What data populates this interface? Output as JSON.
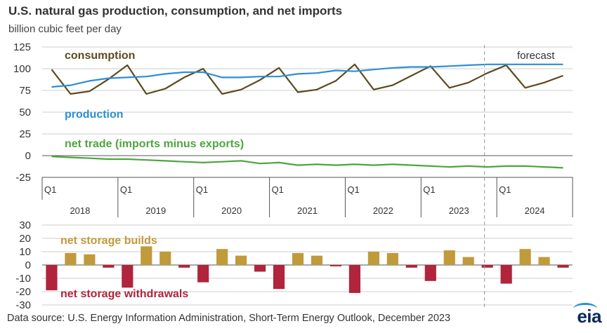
{
  "header": {
    "title": "U.S. natural gas production, consumption, and net imports",
    "subtitle": "billion cubic feet per day"
  },
  "footer": {
    "source": "Data source: U.S. Energy Information Administration, Short-Term Energy Outlook, December 2023",
    "logo": "eia"
  },
  "colors": {
    "consumption": "#5c4a1f",
    "production": "#2b8fd3",
    "net_trade": "#4ea53f",
    "builds": "#c09a3b",
    "withdrawals": "#b0243c",
    "grid": "#cccccc",
    "forecast_line": "#999999"
  },
  "chart_data": [
    {
      "type": "line",
      "title": "U.S. natural gas production, consumption, and net imports",
      "ylabel": "billion cubic feet per day",
      "ylim": [
        -25,
        125
      ],
      "yticks": [
        125,
        100,
        75,
        50,
        25,
        0,
        -25
      ],
      "grid": true,
      "categories": [
        "2018Q1",
        "2018Q2",
        "2018Q3",
        "2018Q4",
        "2019Q1",
        "2019Q2",
        "2019Q3",
        "2019Q4",
        "2020Q1",
        "2020Q2",
        "2020Q3",
        "2020Q4",
        "2021Q1",
        "2021Q2",
        "2021Q3",
        "2021Q4",
        "2022Q1",
        "2022Q2",
        "2022Q3",
        "2022Q4",
        "2023Q1",
        "2023Q2",
        "2023Q3",
        "2023Q4",
        "2024Q1",
        "2024Q2",
        "2024Q3",
        "2024Q4"
      ],
      "quarter_label": "Q1",
      "years": [
        "2018",
        "2019",
        "2020",
        "2021",
        "2022",
        "2023",
        "2024"
      ],
      "forecast_label": "forecast",
      "forecast_start": "2023Q4",
      "series": [
        {
          "name": "consumption",
          "values": [
            99,
            71,
            74,
            88,
            104,
            71,
            77,
            90,
            100,
            71,
            76,
            87,
            101,
            73,
            76,
            86,
            105,
            76,
            81,
            92,
            103,
            78,
            84,
            95,
            104,
            78,
            84,
            92
          ]
        },
        {
          "name": "production",
          "values": [
            79,
            81,
            86,
            89,
            90,
            91,
            94,
            96,
            96,
            90,
            90,
            91,
            91,
            94,
            95,
            98,
            97,
            99,
            101,
            102,
            102,
            103,
            104,
            105,
            105,
            105,
            105,
            105
          ]
        },
        {
          "name": "net trade (imports minus exports)",
          "values": [
            -1,
            -2,
            -3,
            -4,
            -4,
            -5,
            -6,
            -7,
            -8,
            -7,
            -6,
            -9,
            -8,
            -11,
            -10,
            -11,
            -10,
            -11,
            -10,
            -11,
            -12,
            -13,
            -12,
            -13,
            -12,
            -12,
            -13,
            -14
          ]
        }
      ]
    },
    {
      "type": "bar",
      "ylim": [
        -30,
        30
      ],
      "yticks": [
        30,
        20,
        10,
        0,
        -10,
        -20,
        -30
      ],
      "grid": true,
      "categories": [
        "2018Q1",
        "2018Q2",
        "2018Q3",
        "2018Q4",
        "2019Q1",
        "2019Q2",
        "2019Q3",
        "2019Q4",
        "2020Q1",
        "2020Q2",
        "2020Q3",
        "2020Q4",
        "2021Q1",
        "2021Q2",
        "2021Q3",
        "2021Q4",
        "2022Q1",
        "2022Q2",
        "2022Q3",
        "2022Q4",
        "2023Q1",
        "2023Q2",
        "2023Q3",
        "2023Q4",
        "2024Q1",
        "2024Q2",
        "2024Q3",
        "2024Q4"
      ],
      "series": [
        {
          "name": "net storage builds / net storage withdrawals",
          "values": [
            -19,
            9,
            8,
            -2,
            -17,
            14,
            10,
            -2,
            -13,
            12,
            7,
            -5,
            -18,
            9,
            7,
            -1,
            -21,
            10,
            9,
            -2,
            -12,
            11,
            6,
            -2,
            -14,
            12,
            6,
            -2
          ]
        }
      ],
      "labels": {
        "builds": "net storage builds",
        "withdrawals": "net storage withdrawals"
      }
    }
  ]
}
